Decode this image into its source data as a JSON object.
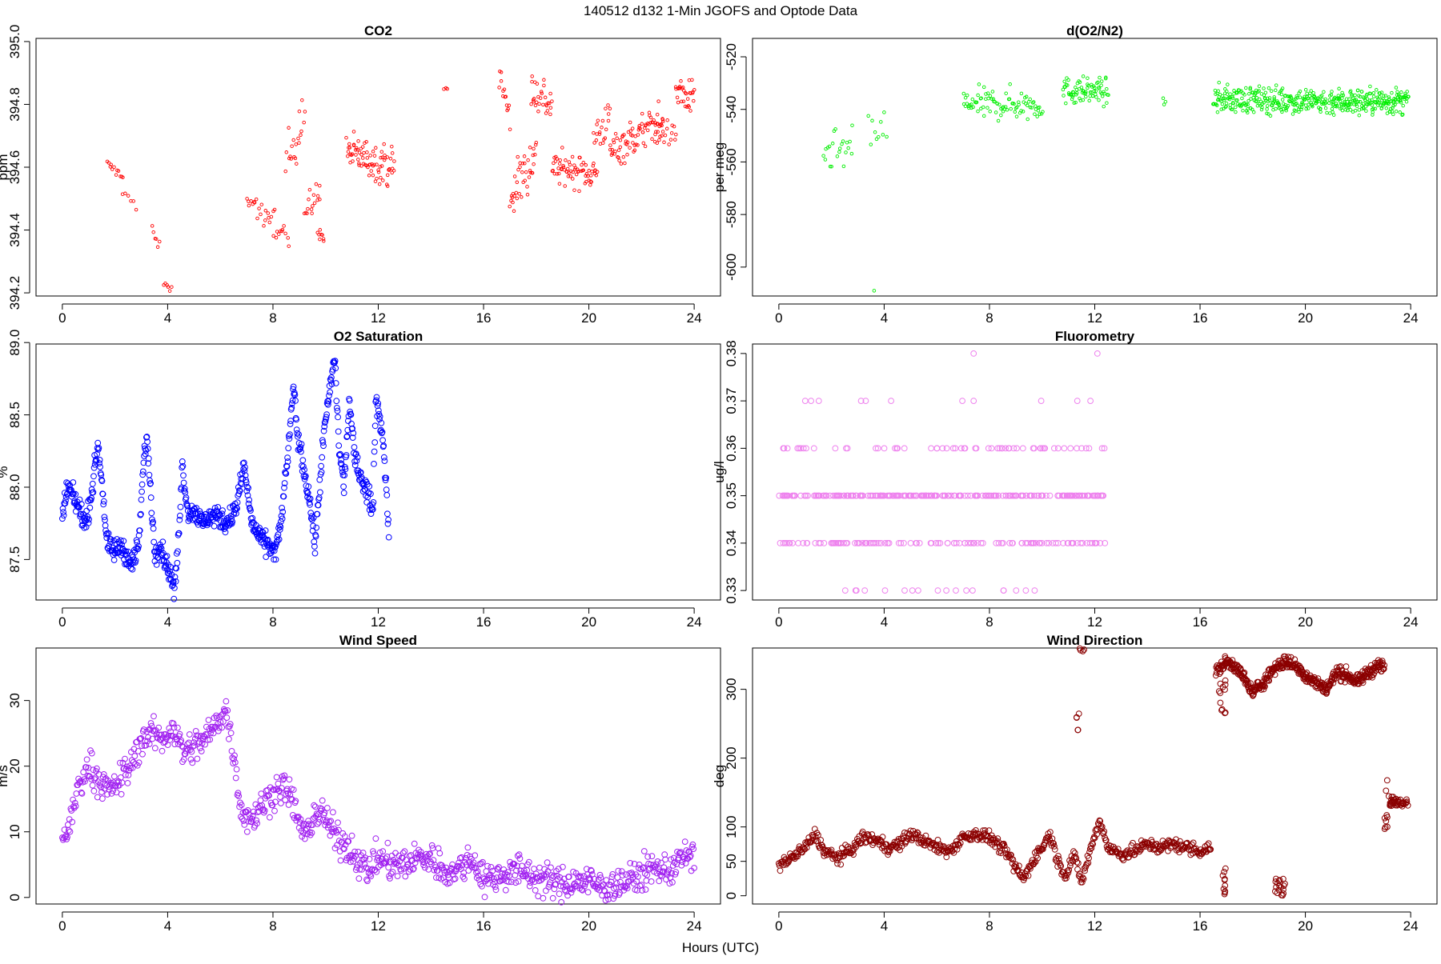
{
  "figure": {
    "title": "140512   d132   1-Min  JGOFS and Optode Data",
    "xlabel": "Hours (UTC)"
  },
  "chart_data": [
    {
      "id": "co2",
      "type": "scatter",
      "title": "CO2",
      "ylabel": "ppm",
      "color": "#ff0000",
      "marker": "small",
      "xlim": [
        -1,
        25
      ],
      "xticks": [
        0,
        4,
        8,
        12,
        16,
        20,
        24
      ],
      "ylim": [
        394.19,
        395.01
      ],
      "yticks": [
        394.2,
        394.4,
        394.6,
        394.8,
        395.0
      ],
      "yticklabels": [
        "394.2",
        "394.4",
        "394.6",
        "394.8",
        "395.0"
      ],
      "segments": [
        {
          "x0": 1.7,
          "x1": 2.3,
          "y0": 394.61,
          "y1": 394.57,
          "n": 12,
          "noise": 0.015
        },
        {
          "x0": 2.3,
          "x1": 2.8,
          "y0": 394.53,
          "y1": 394.47,
          "n": 6,
          "noise": 0.02
        },
        {
          "x0": 3.4,
          "x1": 3.7,
          "y0": 394.4,
          "y1": 394.34,
          "n": 6,
          "noise": 0.02
        },
        {
          "x0": 3.85,
          "x1": 4.15,
          "y0": 394.23,
          "y1": 394.21,
          "n": 6,
          "noise": 0.01
        },
        {
          "x0": 7.0,
          "x1": 8.0,
          "y0": 394.52,
          "y1": 394.4,
          "n": 20,
          "noise": 0.04
        },
        {
          "x0": 8.0,
          "x1": 8.6,
          "y0": 394.45,
          "y1": 394.35,
          "n": 12,
          "noise": 0.05
        },
        {
          "x0": 8.5,
          "x1": 9.2,
          "y0": 394.6,
          "y1": 394.8,
          "n": 20,
          "noise": 0.09
        },
        {
          "x0": 9.2,
          "x1": 9.8,
          "y0": 394.45,
          "y1": 394.52,
          "n": 16,
          "noise": 0.05
        },
        {
          "x0": 9.7,
          "x1": 9.95,
          "y0": 394.4,
          "y1": 394.37,
          "n": 8,
          "noise": 0.02
        },
        {
          "x0": 10.8,
          "x1": 12.6,
          "y0": 394.65,
          "y1": 394.6,
          "n": 80,
          "noise": 0.06
        },
        {
          "x0": 14.5,
          "x1": 14.6,
          "y0": 394.85,
          "y1": 394.85,
          "n": 3,
          "noise": 0.005
        },
        {
          "x0": 16.6,
          "x1": 17.0,
          "y0": 394.9,
          "y1": 394.75,
          "n": 14,
          "noise": 0.06
        },
        {
          "x0": 17.0,
          "x1": 18.0,
          "y0": 394.5,
          "y1": 394.65,
          "n": 40,
          "noise": 0.08
        },
        {
          "x0": 17.8,
          "x1": 18.6,
          "y0": 394.85,
          "y1": 394.8,
          "n": 30,
          "noise": 0.07
        },
        {
          "x0": 18.6,
          "x1": 20.3,
          "y0": 394.6,
          "y1": 394.58,
          "n": 70,
          "noise": 0.05
        },
        {
          "x0": 20.2,
          "x1": 20.8,
          "y0": 394.7,
          "y1": 394.75,
          "n": 20,
          "noise": 0.06
        },
        {
          "x0": 20.8,
          "x1": 22.8,
          "y0": 394.65,
          "y1": 394.75,
          "n": 80,
          "noise": 0.06
        },
        {
          "x0": 22.5,
          "x1": 23.3,
          "y0": 394.72,
          "y1": 394.7,
          "n": 20,
          "noise": 0.04
        },
        {
          "x0": 23.3,
          "x1": 24.0,
          "y0": 394.85,
          "y1": 394.8,
          "n": 30,
          "noise": 0.06
        }
      ]
    },
    {
      "id": "o2n2",
      "type": "scatter",
      "title": "d(O2/N2)",
      "ylabel": "per meg",
      "color": "#00ee00",
      "marker": "small",
      "xlim": [
        -1,
        25
      ],
      "xticks": [
        0,
        4,
        8,
        12,
        16,
        20,
        24
      ],
      "ylim": [
        -611,
        -513
      ],
      "yticks": [
        -600,
        -580,
        -560,
        -540,
        -520
      ],
      "yticklabels": [
        "-600",
        "-580",
        "-560",
        "-540",
        "-520"
      ],
      "segments": [
        {
          "x0": 1.7,
          "x1": 2.8,
          "y0": -556,
          "y1": -556,
          "n": 22,
          "noise": 8
        },
        {
          "x0": 3.4,
          "x1": 4.1,
          "y0": -548,
          "y1": -548,
          "n": 10,
          "noise": 9
        },
        {
          "x0": 3.6,
          "x1": 3.6,
          "y0": -609,
          "y1": -609,
          "n": 1,
          "noise": 0
        },
        {
          "x0": 7.0,
          "x1": 10.0,
          "y0": -538,
          "y1": -538,
          "n": 90,
          "noise": 6
        },
        {
          "x0": 10.8,
          "x1": 12.5,
          "y0": -533,
          "y1": -533,
          "n": 80,
          "noise": 5
        },
        {
          "x0": 14.6,
          "x1": 14.7,
          "y0": -537,
          "y1": -538,
          "n": 3,
          "noise": 1
        },
        {
          "x0": 16.5,
          "x1": 20.8,
          "y0": -536,
          "y1": -537,
          "n": 250,
          "noise": 5
        },
        {
          "x0": 20.9,
          "x1": 23.9,
          "y0": -537,
          "y1": -537,
          "n": 200,
          "noise": 5
        }
      ]
    },
    {
      "id": "o2sat",
      "type": "scatter",
      "title": "O2 Saturation",
      "ylabel": "%",
      "color": "#0000ff",
      "marker": "large",
      "xlim": [
        -1,
        25
      ],
      "xticks": [
        0,
        4,
        8,
        12,
        16,
        20,
        24
      ],
      "ylim": [
        87.22,
        88.99
      ],
      "yticks": [
        87.5,
        88.0,
        88.5,
        89.0
      ],
      "yticklabels": [
        "87.5",
        "88.0",
        "88.5",
        "89.0"
      ],
      "line": {
        "x": [
          0,
          0.2,
          0.5,
          0.9,
          1.1,
          1.35,
          1.5,
          1.7,
          2.0,
          2.2,
          2.4,
          2.6,
          2.9,
          3.1,
          3.2,
          3.35,
          3.5,
          3.7,
          3.9,
          4.1,
          4.25,
          4.4,
          4.55,
          4.8,
          5.0,
          5.3,
          5.6,
          5.9,
          6.2,
          6.6,
          6.9,
          7.05,
          7.2,
          7.5,
          7.8,
          8.1,
          8.3,
          8.5,
          8.8,
          8.9,
          9.1,
          9.4,
          9.6,
          9.9,
          10.1,
          10.35,
          10.5,
          10.7,
          10.9,
          11.1,
          11.3,
          11.6,
          11.8,
          11.9,
          12.0,
          12.2,
          12.4
        ],
        "y": [
          87.8,
          88.0,
          87.9,
          87.75,
          87.95,
          88.3,
          88.05,
          87.6,
          87.55,
          87.6,
          87.55,
          87.45,
          87.6,
          88.2,
          88.35,
          88.0,
          87.55,
          87.6,
          87.5,
          87.4,
          87.28,
          87.6,
          88.15,
          87.8,
          87.85,
          87.75,
          87.8,
          87.8,
          87.75,
          87.85,
          88.15,
          87.95,
          87.75,
          87.65,
          87.6,
          87.55,
          87.75,
          88.1,
          88.7,
          88.4,
          88.2,
          87.9,
          87.6,
          88.3,
          88.6,
          88.9,
          88.3,
          88.0,
          88.6,
          88.2,
          88.1,
          87.95,
          87.85,
          88.6,
          88.55,
          88.3,
          87.7
        ],
        "n": 700,
        "noise": 0.07
      }
    },
    {
      "id": "fluor",
      "type": "scatter",
      "title": "Fluorometry",
      "ylabel": "ug/l",
      "color": "#ee82ee",
      "marker": "large",
      "xlim": [
        -1,
        25
      ],
      "xticks": [
        0,
        4,
        8,
        12,
        16,
        20,
        24
      ],
      "ylim": [
        0.328,
        0.382
      ],
      "yticks": [
        0.33,
        0.34,
        0.35,
        0.36,
        0.37,
        0.38
      ],
      "yticklabels": [
        "0.33",
        "0.34",
        "0.35",
        "0.36",
        "0.37",
        "0.38"
      ],
      "levels": [
        {
          "y": 0.35,
          "x0": 0,
          "x1": 12.4,
          "n": 240
        },
        {
          "y": 0.34,
          "x0": 0,
          "x1": 12.4,
          "n": 120
        },
        {
          "y": 0.36,
          "x0": 0,
          "x1": 12.4,
          "n": 60
        },
        {
          "y": 0.33,
          "x0": 2.4,
          "x1": 9.8,
          "n": 18
        },
        {
          "y": 0.37,
          "x0": 1.0,
          "x1": 12.3,
          "n": 8
        }
      ],
      "points": [
        {
          "x": 7.4,
          "y": 0.38
        },
        {
          "x": 12.1,
          "y": 0.38
        },
        {
          "x": 7.4,
          "y": 0.37
        },
        {
          "x": 3.3,
          "y": 0.37
        },
        {
          "x": 1.0,
          "y": 0.37
        }
      ]
    },
    {
      "id": "wspd",
      "type": "scatter",
      "title": "Wind Speed",
      "ylabel": "m/s",
      "color": "#a020f0",
      "marker": "large",
      "xlim": [
        -1,
        25
      ],
      "xticks": [
        0,
        4,
        8,
        12,
        16,
        20,
        24
      ],
      "ylim": [
        -1,
        38
      ],
      "yticks": [
        0,
        10,
        20,
        30
      ],
      "yticklabels": [
        "0",
        "10",
        "20",
        "30"
      ],
      "line": {
        "x": [
          0,
          0.3,
          0.6,
          1.0,
          1.4,
          1.8,
          2.2,
          2.6,
          3.0,
          3.4,
          3.8,
          4.2,
          4.6,
          5.0,
          5.4,
          5.8,
          6.2,
          6.5,
          6.8,
          7.2,
          7.6,
          8.0,
          8.4,
          8.8,
          9.2,
          9.6,
          10.0,
          10.4,
          10.8,
          11.2,
          11.6,
          12.0,
          12.5,
          13.0,
          13.5,
          14.0,
          14.5,
          15.0,
          15.5,
          16.0,
          16.5,
          17.0,
          17.5,
          18.0,
          18.5,
          19.0,
          19.5,
          20.0,
          20.5,
          21.0,
          21.5,
          22.0,
          22.5,
          23.0,
          23.5,
          24.0
        ],
        "y": [
          9,
          11,
          17,
          20,
          18,
          16,
          18,
          20,
          24,
          25,
          24,
          26,
          22,
          23,
          24,
          26,
          29,
          22,
          13,
          12,
          14,
          16,
          17,
          14,
          9,
          13,
          12,
          9,
          8,
          6,
          4,
          6,
          5,
          5,
          6,
          6,
          4,
          4,
          6,
          3,
          3,
          4,
          4,
          3,
          2.5,
          2,
          2.5,
          2.5,
          1.5,
          2,
          2.5,
          3.5,
          4.5,
          4,
          6,
          6
        ],
        "n": 900,
        "noise": 2.4
      }
    },
    {
      "id": "wdir",
      "type": "scatter",
      "title": "Wind Direction",
      "ylabel": "deg",
      "color": "#8b0000",
      "marker": "large",
      "xlim": [
        -1,
        25
      ],
      "xticks": [
        0,
        4,
        8,
        12,
        16,
        20,
        24
      ],
      "ylim": [
        -12,
        360
      ],
      "yticks": [
        0,
        50,
        100,
        200,
        300
      ],
      "yticklabels": [
        "0",
        "50",
        "100",
        "200",
        "300"
      ],
      "line": {
        "x": [
          0,
          0.5,
          1.0,
          1.4,
          1.7,
          2.2,
          2.7,
          3.2,
          3.7,
          4.2,
          4.6,
          5.0,
          5.5,
          6.0,
          6.5,
          7.0,
          7.5,
          8.0,
          8.3,
          8.7,
          9.0,
          9.3,
          9.7,
          10.0,
          10.3,
          10.6,
          10.9,
          11.2,
          11.5,
          11.9,
          12.2,
          12.5,
          13.0,
          13.5,
          14.0,
          14.5,
          15.0,
          15.5,
          16.0,
          16.4
        ],
        "y": [
          45,
          55,
          70,
          90,
          65,
          55,
          65,
          85,
          80,
          70,
          75,
          90,
          80,
          70,
          65,
          85,
          90,
          85,
          75,
          60,
          40,
          25,
          55,
          70,
          90,
          50,
          30,
          60,
          20,
          75,
          110,
          70,
          60,
          65,
          75,
          70,
          75,
          70,
          65,
          70
        ],
        "n": 650,
        "noise": 9
      },
      "line2": {
        "x": [
          16.6,
          17.0,
          17.3,
          17.6,
          18.0,
          18.4,
          18.8,
          19.2,
          19.6,
          20.0,
          20.4,
          20.8,
          21.2,
          21.6,
          22.0,
          22.4,
          22.8,
          23.0
        ],
        "y": [
          325,
          340,
          335,
          320,
          295,
          310,
          330,
          340,
          335,
          320,
          310,
          300,
          325,
          320,
          310,
          325,
          335,
          330
        ],
        "n": 420,
        "noise": 9
      },
      "clusters": [
        {
          "x0": 16.7,
          "x1": 17.0,
          "y0": 260,
          "y1": 320,
          "n": 12
        },
        {
          "x0": 16.8,
          "x1": 17.0,
          "y0": 0,
          "y1": 40,
          "n": 10
        },
        {
          "x0": 18.8,
          "x1": 19.3,
          "y0": 0,
          "y1": 25,
          "n": 18
        },
        {
          "x0": 11.3,
          "x1": 11.4,
          "y0": 240,
          "y1": 265,
          "n": 5
        },
        {
          "x0": 11.4,
          "x1": 11.6,
          "y0": 355,
          "y1": 360,
          "n": 4
        },
        {
          "x0": 23.0,
          "x1": 23.2,
          "y0": 85,
          "y1": 175,
          "n": 10
        },
        {
          "x0": 23.2,
          "x1": 23.9,
          "y0": 130,
          "y1": 145,
          "n": 40
        }
      ]
    }
  ]
}
